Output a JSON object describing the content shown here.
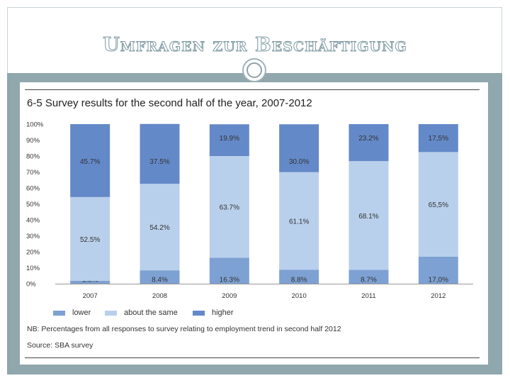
{
  "slide": {
    "title": "Umfragen zur Beschäftigung"
  },
  "chart_data": {
    "type": "bar",
    "stacked": true,
    "title": "6-5  Survey results for the second half of the year, 2007-2012",
    "categories": [
      "2007",
      "2008",
      "2009",
      "2010",
      "2011",
      "2012"
    ],
    "series": [
      {
        "name": "lower",
        "values": [
          1.8,
          8.4,
          16.3,
          8.8,
          8.7,
          17.0
        ],
        "labels": [
          "1.8%",
          "8.4%",
          "16.3%",
          "8.8%",
          "8.7%",
          "17,0%"
        ],
        "color": "#7ea1d3"
      },
      {
        "name": "about the same",
        "values": [
          52.5,
          54.2,
          63.7,
          61.1,
          68.1,
          65.5
        ],
        "labels": [
          "52.5%",
          "54.2%",
          "63.7%",
          "61.1%",
          "68.1%",
          "65,5%"
        ],
        "color": "#b9d0ec"
      },
      {
        "name": "higher",
        "values": [
          45.7,
          37.5,
          19.9,
          30.0,
          23.2,
          17.5
        ],
        "labels": [
          "45.7%",
          "37.5%",
          "19.9%",
          "30.0%",
          "23.2%",
          "17,5%"
        ],
        "color": "#6489c8"
      }
    ],
    "yticks": [
      "0%",
      "10%",
      "20%",
      "30%",
      "40%",
      "50%",
      "60%",
      "70%",
      "80%",
      "90%",
      "100%"
    ],
    "ylim": [
      0,
      100
    ],
    "legend_position": "bottom",
    "note": "NB: Percentages from all responses to survey relating to employment trend in second half 2012",
    "source": "Source: SBA survey"
  }
}
